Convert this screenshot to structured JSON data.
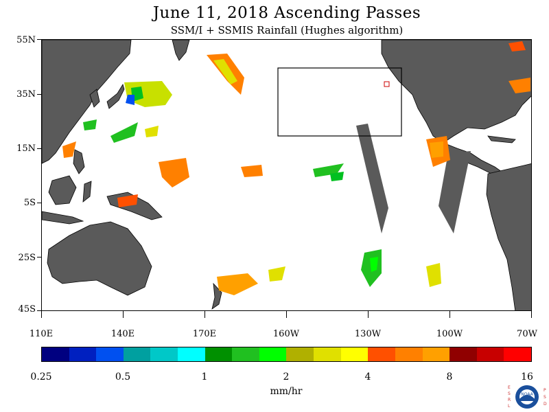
{
  "header": {
    "title": "June 11, 2018  Ascending Passes",
    "subtitle": "SSM/I + SSMIS Rainfall (Hughes algorithm)"
  },
  "map": {
    "lat_labels": [
      "55N",
      "35N",
      "15N",
      "5S",
      "25S",
      "45S"
    ],
    "lon_labels": [
      "110E",
      "140E",
      "170E",
      "160W",
      "130W",
      "100W",
      "70W"
    ],
    "land_color": "#5a5a5a",
    "ocean_color": "#ffffff",
    "swath_gap_color": "#5a5a5a",
    "box_color": "#000000",
    "marker_color": "#cc0000"
  },
  "colorbar": {
    "colors": [
      "#000080",
      "#0020c0",
      "#0050f0",
      "#00a0a0",
      "#00c8c8",
      "#00ffff",
      "#009000",
      "#20c020",
      "#00ff00",
      "#b0b000",
      "#e0e000",
      "#ffff00",
      "#ff5000",
      "#ff8000",
      "#ffa000",
      "#900000",
      "#c80000",
      "#ff0000"
    ],
    "tick_labels": [
      "0.25",
      "0.5",
      "1",
      "2",
      "4",
      "8",
      "16"
    ],
    "units": "mm/hr"
  },
  "logo": {
    "left_letters": "ESRL",
    "right_letters": "PSD",
    "text": "NOAA"
  }
}
